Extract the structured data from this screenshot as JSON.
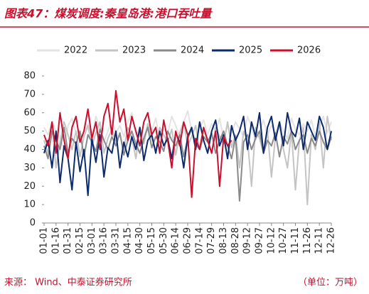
{
  "chart_data": {
    "type": "line",
    "title": "图表47：煤炭调度:秦皇岛港:港口吞吐量",
    "source": "来源： Wind、中泰证券研究所",
    "unit_note": "（单位：万吨）",
    "categories": [
      "01-01",
      null,
      null,
      "01-16",
      null,
      null,
      "01-31",
      null,
      null,
      "02-15",
      null,
      null,
      "03-01",
      null,
      null,
      "03-16",
      null,
      null,
      "03-31",
      null,
      null,
      "04-15",
      null,
      null,
      "04-30",
      null,
      null,
      "05-15",
      null,
      null,
      "05-30",
      null,
      null,
      "06-14",
      null,
      null,
      "06-29",
      null,
      null,
      "07-14",
      null,
      null,
      "07-29",
      null,
      null,
      "08-13",
      null,
      null,
      "08-28",
      null,
      null,
      "09-12",
      null,
      null,
      "09-27",
      null,
      null,
      "10-12",
      null,
      null,
      "10-27",
      null,
      null,
      "11-11",
      null,
      null,
      "11-26",
      null,
      null,
      "12-11",
      null,
      null,
      "12-26"
    ],
    "ylim": [
      0,
      80
    ],
    "yticks": [
      0,
      10,
      20,
      30,
      40,
      50,
      60,
      70,
      80
    ],
    "legend": "top",
    "series": [
      {
        "name": "2022",
        "color": "#e3e3e3",
        "values": [
          52,
          48,
          55,
          50,
          46,
          40,
          53,
          57,
          49,
          45,
          50,
          54,
          47,
          58,
          51,
          44,
          50,
          56,
          49,
          53,
          47,
          55,
          60,
          48,
          52,
          46,
          54,
          50,
          57,
          45,
          51,
          49,
          58,
          53,
          47,
          55,
          61,
          50,
          44,
          52,
          56,
          48,
          54,
          50,
          57,
          46,
          53,
          49,
          55,
          51,
          47,
          58,
          52,
          45,
          50,
          56,
          48,
          53,
          49,
          55,
          50,
          46,
          57,
          51,
          48,
          54,
          50,
          56,
          47,
          52,
          58,
          49,
          55
        ]
      },
      {
        "name": "2023",
        "color": "#c4c4c4",
        "values": [
          45,
          38,
          52,
          30,
          44,
          55,
          48,
          40,
          50,
          36,
          47,
          53,
          42,
          49,
          55,
          38,
          46,
          51,
          44,
          48,
          40,
          52,
          47,
          35,
          50,
          43,
          54,
          46,
          39,
          52,
          48,
          44,
          51,
          37,
          49,
          55,
          42,
          47,
          53,
          40,
          50,
          45,
          38,
          52,
          47,
          43,
          55,
          41,
          48,
          30,
          50,
          45,
          20,
          52,
          46,
          38,
          50,
          25,
          47,
          53,
          40,
          30,
          50,
          18,
          45,
          52,
          10,
          48,
          40,
          55,
          30,
          58,
          45
        ]
      },
      {
        "name": "2024",
        "color": "#8a8a8a",
        "values": [
          42,
          35,
          50,
          45,
          40,
          52,
          38,
          46,
          43,
          50,
          36,
          48,
          44,
          39,
          51,
          45,
          40,
          47,
          42,
          49,
          37,
          45,
          50,
          43,
          38,
          46,
          52,
          41,
          47,
          44,
          39,
          50,
          45,
          42,
          48,
          36,
          46,
          51,
          43,
          40,
          47,
          44,
          49,
          38,
          45,
          50,
          42,
          35,
          47,
          12,
          44,
          48,
          40,
          46,
          50,
          38,
          45,
          42,
          49,
          36,
          47,
          43,
          50,
          40,
          45,
          48,
          38,
          46,
          42,
          50,
          44,
          40,
          47
        ]
      },
      {
        "name": "2025",
        "color": "#0c2a6e",
        "values": [
          38,
          45,
          30,
          50,
          22,
          42,
          35,
          18,
          44,
          28,
          40,
          15,
          46,
          33,
          48,
          25,
          41,
          38,
          50,
          30,
          44,
          36,
          47,
          40,
          52,
          34,
          45,
          48,
          38,
          50,
          42,
          46,
          35,
          49,
          44,
          30,
          47,
          52,
          40,
          55,
          45,
          38,
          50,
          56,
          42,
          48,
          35,
          53,
          45,
          50,
          58,
          40,
          55,
          47,
          60,
          38,
          52,
          58,
          45,
          55,
          42,
          60,
          50,
          47,
          57,
          40,
          55,
          50,
          45,
          58,
          52,
          40,
          50
        ]
      },
      {
        "name": "2026",
        "color": "#c8102e",
        "values": [
          48,
          42,
          55,
          38,
          60,
          45,
          35,
          52,
          58,
          44,
          50,
          62,
          46,
          55,
          40,
          58,
          65,
          48,
          72,
          55,
          62,
          45,
          58,
          50,
          42,
          55,
          60,
          48,
          52,
          38,
          56,
          45,
          30,
          50,
          42,
          55,
          48,
          14,
          46,
          40,
          52,
          45,
          38,
          50,
          20,
          47,
          42,
          45,
          null,
          null,
          null,
          null,
          null,
          null,
          null,
          null,
          null,
          null,
          null,
          null,
          null,
          null,
          null,
          null,
          null,
          null,
          null,
          null,
          null,
          null,
          null,
          null,
          null
        ]
      }
    ]
  }
}
